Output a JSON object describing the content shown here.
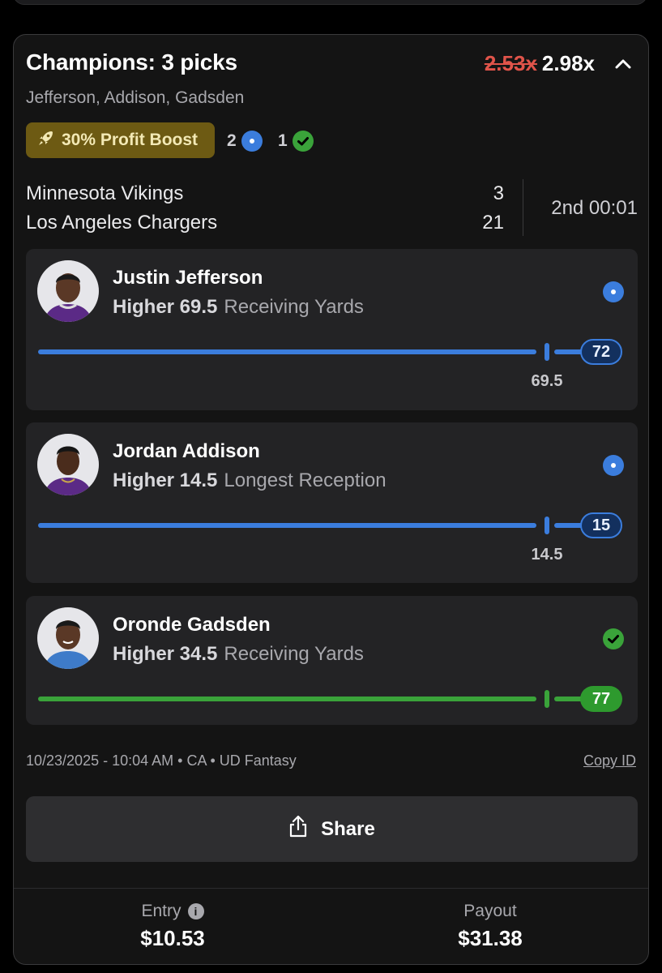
{
  "entry": {
    "title": "Champions: 3 picks",
    "old_multiplier": "2.53x",
    "multiplier": "2.98x",
    "players_summary": "Jefferson, Addison, Gadsden",
    "boost_label": "30% Profit Boost",
    "pending_count": "2",
    "won_count": "1"
  },
  "game": {
    "team1": "Minnesota Vikings",
    "score1": "3",
    "team2": "Los Angeles Chargers",
    "score2": "21",
    "clock": "2nd 00:01"
  },
  "picks": [
    {
      "player": "Justin Jefferson",
      "direction": "Higher 69.5",
      "stat": "Receiving Yards",
      "line_label": "69.5",
      "current": "72",
      "status": "pending",
      "progress": 0.97
    },
    {
      "player": "Jordan Addison",
      "direction": "Higher 14.5",
      "stat": "Longest Reception",
      "line_label": "14.5",
      "current": "15",
      "status": "pending",
      "progress": 0.97
    },
    {
      "player": "Oronde Gadsden",
      "direction": "Higher 34.5",
      "stat": "Receiving Yards",
      "line_label": "",
      "current": "77",
      "status": "won",
      "progress": 1.0
    }
  ],
  "meta": {
    "details": "10/23/2025 - 10:04 AM • CA • UD Fantasy",
    "copy_id": "Copy ID"
  },
  "share_label": "Share",
  "footer": {
    "entry_label": "Entry",
    "entry_value": "$10.53",
    "payout_label": "Payout",
    "payout_value": "$31.38"
  },
  "colors": {
    "pending": "#3b7ddd",
    "won": "#3aa33a",
    "boost": "#6d5a13",
    "strike": "#e0544a"
  },
  "icons": {
    "boost": "rocket-icon",
    "collapse": "chevron-up-icon",
    "share": "share-icon",
    "info": "info-icon"
  }
}
